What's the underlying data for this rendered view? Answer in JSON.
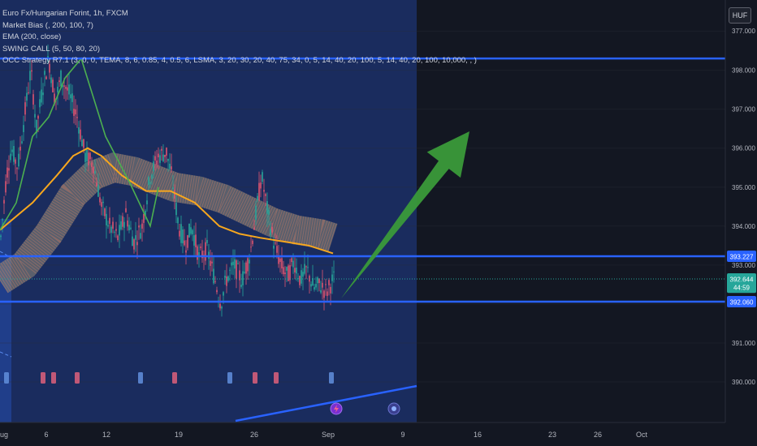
{
  "header": {
    "symbol": "Euro Fx/Hungarian Forint, 1h, FXCM",
    "currency": "HUF"
  },
  "indicators": [
    "Market Bias (, 200, 100, 7)",
    "EMA (200, close)",
    "SWING CALL (5, 50, 80, 20)",
    "OCC Strategy R7.1 (3, 0, 0, TEMA, 8, 6, 0.85, 4, 0.5, 6, LSMA, 3, 20, 30, 20, 40, 75, 34, 0, 5, 14, 40, 20, 100, 5, 14, 40, 20, 100, 10,000, , )"
  ],
  "colors": {
    "background": "#131722",
    "highlight_zone": "#1a2c5e",
    "hline": "#2962ff",
    "arrow": "#3a9a3a",
    "ema": "#f7a71e",
    "swing_line": "#4caf50",
    "up_candle": "#26a69a",
    "down_candle": "#e05470",
    "signal_buy": "#5d89d6",
    "signal_sell": "#d35d7a"
  },
  "price_axis": {
    "ticks": [
      "390.000",
      "391.000",
      "392.000",
      "393.000",
      "394.000",
      "395.000",
      "396.000",
      "397.000",
      "398.000",
      "377.000"
    ],
    "labels": [
      {
        "text": "393.227",
        "value": 393.227,
        "color": "#2962ff"
      },
      {
        "text": "392.644",
        "value": 392.644,
        "color": "#26a69a"
      },
      {
        "text": "44:59",
        "value": 392.43,
        "color": "#26a69a"
      },
      {
        "text": "392.060",
        "value": 392.06,
        "color": "#2962ff"
      }
    ]
  },
  "time_axis": {
    "ticks": [
      "Aug",
      "6",
      "12",
      "19",
      "26",
      "Sep",
      "9",
      "16",
      "23",
      "26",
      "Oct"
    ]
  },
  "chart_data": {
    "type": "candlestick",
    "title": "Euro Fx/Hungarian Forint, 1h, FXCM",
    "ylim": [
      389.55,
      399.2
    ],
    "horizontal_levels": [
      398.3,
      393.227,
      392.06
    ],
    "price_path": [
      {
        "x": 0,
        "y": 393.5
      },
      {
        "x": 8,
        "y": 395.3
      },
      {
        "x": 14,
        "y": 396.0
      },
      {
        "x": 22,
        "y": 395.5
      },
      {
        "x": 30,
        "y": 396.8
      },
      {
        "x": 38,
        "y": 398.0
      },
      {
        "x": 45,
        "y": 396.5
      },
      {
        "x": 52,
        "y": 397.5
      },
      {
        "x": 60,
        "y": 398.3
      },
      {
        "x": 68,
        "y": 397.2
      },
      {
        "x": 75,
        "y": 397.8
      },
      {
        "x": 85,
        "y": 397.4
      },
      {
        "x": 95,
        "y": 396.8
      },
      {
        "x": 105,
        "y": 395.8
      },
      {
        "x": 115,
        "y": 395.6
      },
      {
        "x": 125,
        "y": 394.5
      },
      {
        "x": 135,
        "y": 394.0
      },
      {
        "x": 145,
        "y": 393.7
      },
      {
        "x": 155,
        "y": 394.3
      },
      {
        "x": 165,
        "y": 393.6
      },
      {
        "x": 175,
        "y": 394.0
      },
      {
        "x": 185,
        "y": 395.3
      },
      {
        "x": 195,
        "y": 395.8
      },
      {
        "x": 205,
        "y": 395.9
      },
      {
        "x": 212,
        "y": 395.2
      },
      {
        "x": 220,
        "y": 394.0
      },
      {
        "x": 228,
        "y": 393.5
      },
      {
        "x": 236,
        "y": 394.0
      },
      {
        "x": 245,
        "y": 393.2
      },
      {
        "x": 255,
        "y": 393.4
      },
      {
        "x": 265,
        "y": 392.6
      },
      {
        "x": 272,
        "y": 392.0
      },
      {
        "x": 278,
        "y": 392.6
      },
      {
        "x": 288,
        "y": 393.0
      },
      {
        "x": 298,
        "y": 392.6
      },
      {
        "x": 308,
        "y": 393.3
      },
      {
        "x": 315,
        "y": 394.3
      },
      {
        "x": 322,
        "y": 395.3
      },
      {
        "x": 330,
        "y": 394.3
      },
      {
        "x": 338,
        "y": 393.5
      },
      {
        "x": 346,
        "y": 393.0
      },
      {
        "x": 354,
        "y": 392.7
      },
      {
        "x": 362,
        "y": 393.1
      },
      {
        "x": 370,
        "y": 392.6
      },
      {
        "x": 378,
        "y": 392.9
      },
      {
        "x": 386,
        "y": 392.4
      },
      {
        "x": 394,
        "y": 392.5
      },
      {
        "x": 402,
        "y": 392.3
      },
      {
        "x": 410,
        "y": 392.64
      }
    ],
    "ema_200": [
      {
        "x": 0,
        "y": 393.9
      },
      {
        "x": 40,
        "y": 394.6
      },
      {
        "x": 70,
        "y": 395.3
      },
      {
        "x": 90,
        "y": 395.8
      },
      {
        "x": 108,
        "y": 396.0
      },
      {
        "x": 125,
        "y": 395.8
      },
      {
        "x": 150,
        "y": 395.3
      },
      {
        "x": 180,
        "y": 394.9
      },
      {
        "x": 210,
        "y": 394.9
      },
      {
        "x": 240,
        "y": 394.6
      },
      {
        "x": 270,
        "y": 394.0
      },
      {
        "x": 295,
        "y": 393.8
      },
      {
        "x": 320,
        "y": 393.7
      },
      {
        "x": 350,
        "y": 393.6
      },
      {
        "x": 380,
        "y": 393.5
      },
      {
        "x": 410,
        "y": 393.3
      }
    ],
    "market_bias_band": [
      {
        "x": 0,
        "y": 392.6
      },
      {
        "x": 30,
        "y": 393.0
      },
      {
        "x": 60,
        "y": 393.8
      },
      {
        "x": 90,
        "y": 394.8
      },
      {
        "x": 115,
        "y": 395.3
      },
      {
        "x": 140,
        "y": 395.5
      },
      {
        "x": 165,
        "y": 395.4
      },
      {
        "x": 190,
        "y": 395.2
      },
      {
        "x": 215,
        "y": 395.0
      },
      {
        "x": 245,
        "y": 394.9
      },
      {
        "x": 275,
        "y": 394.7
      },
      {
        "x": 305,
        "y": 394.4
      },
      {
        "x": 335,
        "y": 394.1
      },
      {
        "x": 365,
        "y": 393.9
      },
      {
        "x": 395,
        "y": 393.8
      },
      {
        "x": 410,
        "y": 393.7
      }
    ],
    "swing_call": [
      {
        "x": 0,
        "y": 393.9
      },
      {
        "x": 20,
        "y": 394.6
      },
      {
        "x": 40,
        "y": 396.3
      },
      {
        "x": 60,
        "y": 396.8
      },
      {
        "x": 80,
        "y": 397.8
      },
      {
        "x": 100,
        "y": 398.3
      },
      {
        "x": 130,
        "y": 396.3
      },
      {
        "x": 160,
        "y": 395.1
      },
      {
        "x": 185,
        "y": 394.0
      },
      {
        "x": 195,
        "y": 395.0
      }
    ],
    "signals": [
      {
        "x": 8,
        "type": "buy"
      },
      {
        "x": 53,
        "type": "sell"
      },
      {
        "x": 66,
        "type": "sell"
      },
      {
        "x": 95,
        "type": "sell"
      },
      {
        "x": 173,
        "type": "buy"
      },
      {
        "x": 215,
        "type": "sell"
      },
      {
        "x": 283,
        "type": "buy"
      },
      {
        "x": 314,
        "type": "sell"
      },
      {
        "x": 340,
        "type": "sell"
      },
      {
        "x": 408,
        "type": "buy"
      }
    ]
  }
}
